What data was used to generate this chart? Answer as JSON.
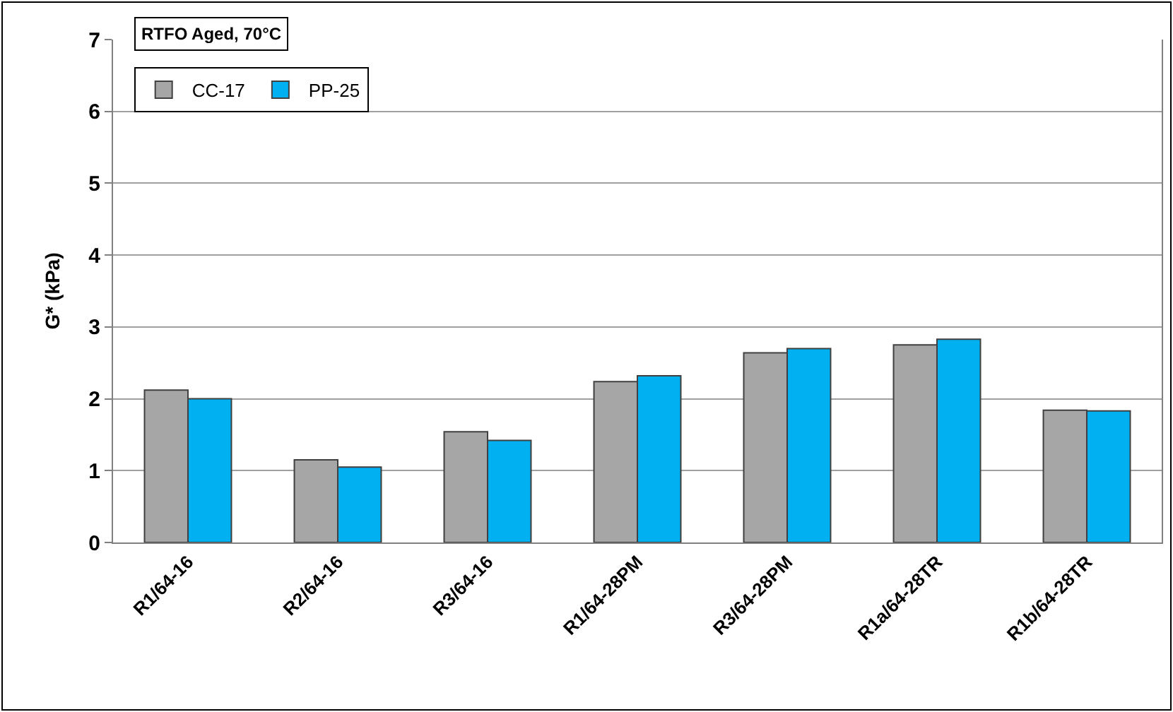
{
  "chart_data": {
    "type": "bar",
    "ylabel": "G* (kPa)",
    "legend_title": "RTFO Aged, 70°C",
    "categories": [
      "R1/64-16",
      "R2/64-16",
      "R3/64-16",
      "R1/64-28PM",
      "R3/64-28PM",
      "R1a/64-28TR",
      "R1b/64-28TR"
    ],
    "series": [
      {
        "name": "CC-17",
        "color": "#a6a6a6",
        "values": [
          2.12,
          1.15,
          1.54,
          2.24,
          2.64,
          2.75,
          1.84
        ]
      },
      {
        "name": "PP-25",
        "color": "#00b0f0",
        "values": [
          2.0,
          1.05,
          1.42,
          2.32,
          2.7,
          2.83,
          1.83
        ]
      }
    ],
    "ylim": [
      0,
      7
    ],
    "yticks": [
      0,
      1,
      2,
      3,
      4,
      5,
      6,
      7
    ],
    "grid": "y",
    "legend": "top left"
  }
}
